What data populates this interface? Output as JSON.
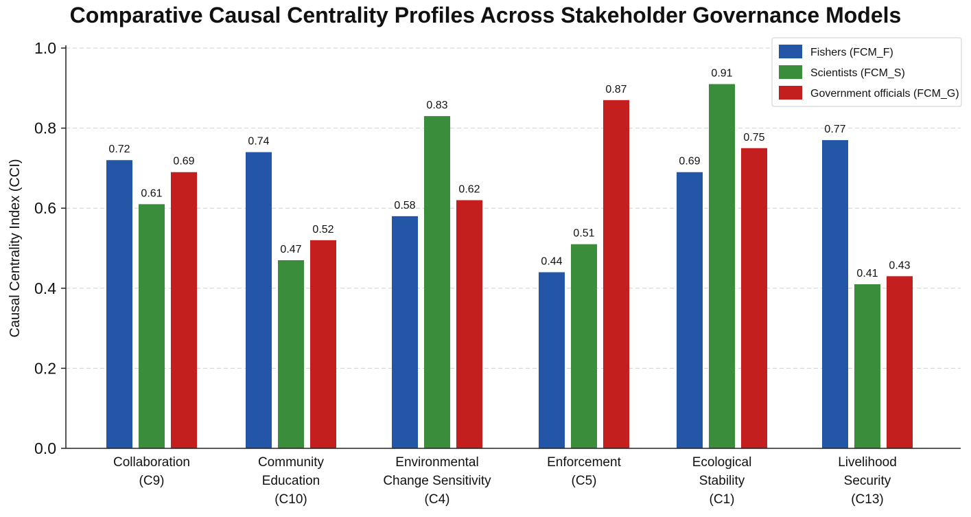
{
  "chart_data": {
    "type": "bar",
    "title": "Comparative Causal Centrality Profiles Across Stakeholder Governance Models",
    "xlabel": "",
    "ylabel": "Causal Centrality Index (CCI)",
    "ylim": [
      0,
      1.0
    ],
    "yticks": [
      "0.0",
      "0.2",
      "0.4",
      "0.6",
      "0.8",
      "1.0"
    ],
    "grid": "horizontal dashed",
    "legend_position": "top-right",
    "categories": [
      [
        "Collaboration",
        "(C9)"
      ],
      [
        "Community",
        "Education",
        "(C10)"
      ],
      [
        "Environmental",
        "Change Sensitivity",
        "(C4)"
      ],
      [
        "Enforcement",
        "(C5)"
      ],
      [
        "Ecological",
        "Stability",
        "(C1)"
      ],
      [
        "Livelihood",
        "Security",
        "(C13)"
      ]
    ],
    "series": [
      {
        "name": "Fishers (FCM_F)",
        "color": "#2456a8",
        "values": [
          0.72,
          0.74,
          0.58,
          0.44,
          0.69,
          0.77
        ],
        "labels": [
          "0.72",
          "0.74",
          "0.58",
          "0.44",
          "0.69",
          "0.77"
        ]
      },
      {
        "name": "Scientists (FCM_S)",
        "color": "#3a8d3a",
        "values": [
          0.61,
          0.47,
          0.83,
          0.51,
          0.91,
          0.41
        ],
        "labels": [
          "0.61",
          "0.47",
          "0.83",
          "0.51",
          "0.91",
          "0.41"
        ]
      },
      {
        "name": "Government officials (FCM_G)",
        "color": "#c41f1f",
        "values": [
          0.69,
          0.52,
          0.62,
          0.87,
          0.75,
          0.43
        ],
        "labels": [
          "0.69",
          "0.52",
          "0.62",
          "0.87",
          "0.75",
          "0.43"
        ]
      }
    ]
  }
}
